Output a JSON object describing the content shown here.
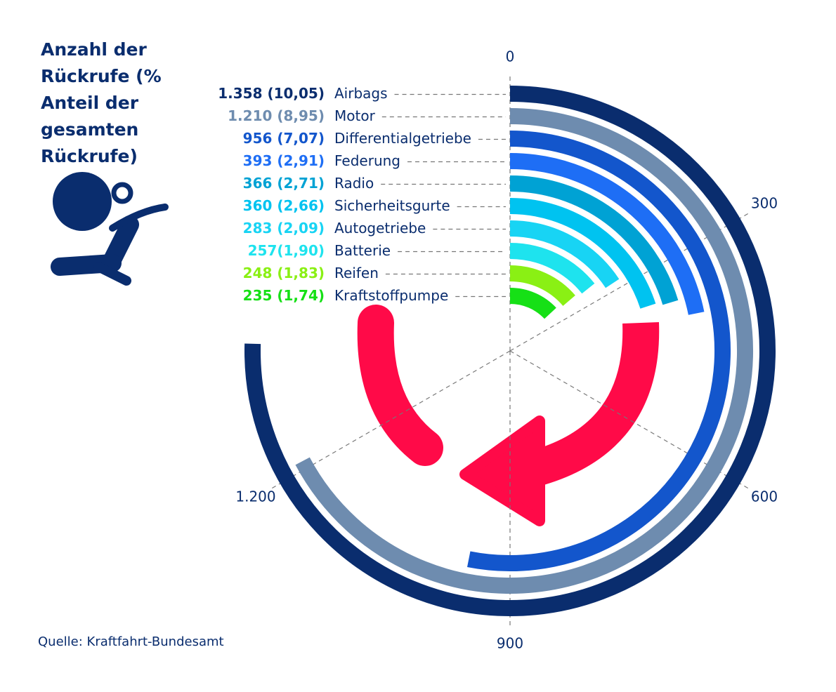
{
  "chart_data": {
    "type": "radial-bar",
    "title": "Anzahl der Rückrufe (% Anteil der gesamten Rückrufe)",
    "source": "Quelle: Kraftfahrt-Bundesamt",
    "categories": [
      "Airbags",
      "Motor",
      "Differentialgetriebe",
      "Federung",
      "Radio",
      "Sicherheitsgurte",
      "Autogetriebe",
      "Batterie",
      "Reifen",
      "Kraftstoffpumpe"
    ],
    "values": [
      1358,
      1210,
      956,
      393,
      366,
      360,
      283,
      257,
      248,
      235
    ],
    "value_labels": [
      "1.358 (10,05)",
      "1.210 (8,95)",
      "956 (7,07)",
      "393 (2,91)",
      "366 (2,71)",
      "360 (2,66)",
      "283 (2,09)",
      "257(1,90)",
      "248 (1,83)",
      "235 (1,74)"
    ],
    "colors": [
      "#0a2d6e",
      "#6e8caf",
      "#1356cc",
      "#1e6ef5",
      "#00a2d4",
      "#00c3f0",
      "#18d4f4",
      "#1ee3ee",
      "#8af014",
      "#16e016"
    ],
    "xlim": [
      0,
      1800
    ],
    "xticks": [
      0,
      300,
      600,
      900,
      {
        "value": 1200,
        "label": "1.200"
      }
    ],
    "grid": true
  }
}
